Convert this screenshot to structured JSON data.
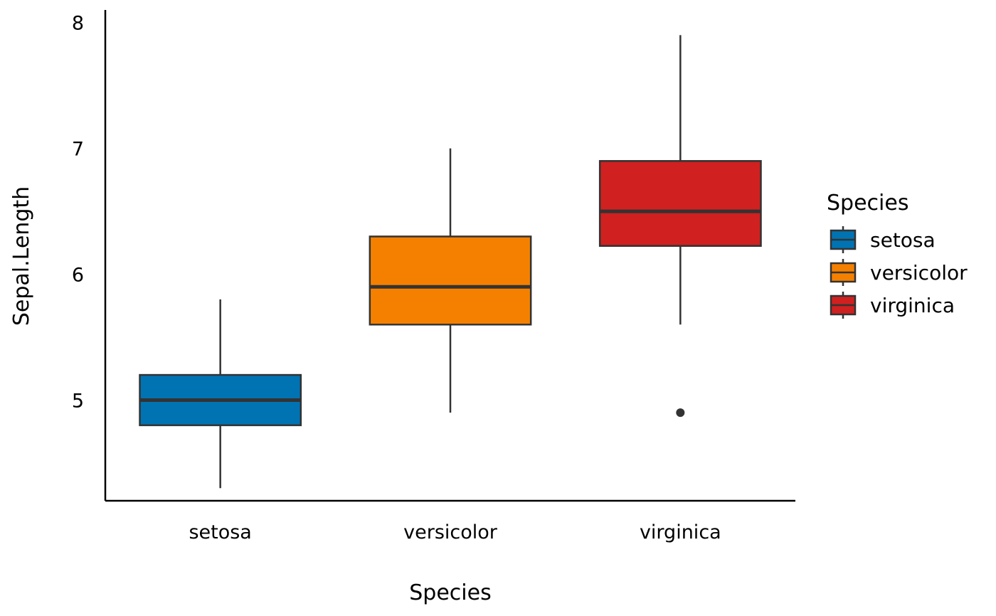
{
  "chart_data": {
    "type": "boxplot",
    "xlabel": "Species",
    "ylabel": "Sepal.Length",
    "categories": [
      "setosa",
      "versicolor",
      "virginica"
    ],
    "ylim": [
      4.2,
      8.1
    ],
    "yticks": [
      5,
      6,
      7,
      8
    ],
    "yticklabels": [
      "5",
      "6",
      "7",
      "8"
    ],
    "grid": false,
    "series": [
      {
        "name": "setosa",
        "color": "#0073B3",
        "whisker_low": 4.3,
        "q1": 4.8,
        "median": 5.0,
        "q3": 5.2,
        "whisker_high": 5.8,
        "outliers": []
      },
      {
        "name": "versicolor",
        "color": "#F58000",
        "whisker_low": 4.9,
        "q1": 5.6,
        "median": 5.9,
        "q3": 6.3,
        "whisker_high": 7.0,
        "outliers": []
      },
      {
        "name": "virginica",
        "color": "#D02020",
        "whisker_low": 5.6,
        "q1": 6.225,
        "median": 6.5,
        "q3": 6.9,
        "whisker_high": 7.9,
        "outliers": [
          4.9
        ]
      }
    ],
    "outline_color": "#333333",
    "legend": {
      "title": "Species",
      "position": "right",
      "entries": [
        "setosa",
        "versicolor",
        "virginica"
      ]
    }
  }
}
